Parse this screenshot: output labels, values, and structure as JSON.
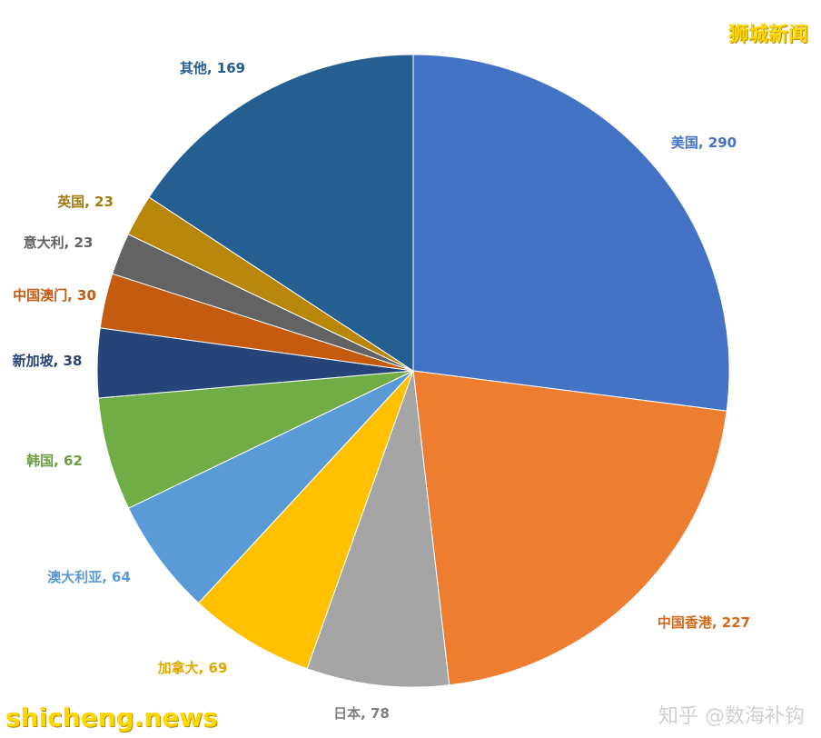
{
  "chart_data": {
    "type": "pie",
    "title": "",
    "start_angle_deg": 0,
    "direction": "clockwise",
    "slices": [
      {
        "label": "美国",
        "value": 290,
        "display": "美国, 290",
        "color": "#4472c4",
        "label_color": "#4472c4"
      },
      {
        "label": "中国香港",
        "value": 227,
        "display": "中国香港, 227",
        "color": "#ed7d31",
        "label_color": "#d4691c"
      },
      {
        "label": "日本",
        "value": 78,
        "display": "日本, 78",
        "color": "#a5a5a5",
        "label_color": "#7f7f7f"
      },
      {
        "label": "加拿大",
        "value": 69,
        "display": "加拿大, 69",
        "color": "#ffc000",
        "label_color": "#e0a800"
      },
      {
        "label": "澳大利亚",
        "value": 64,
        "display": "澳大利亚, 64",
        "color": "#5b9bd5",
        "label_color": "#5b9bd5"
      },
      {
        "label": "韩国",
        "value": 62,
        "display": "韩国, 62",
        "color": "#70ad47",
        "label_color": "#6a9e3f"
      },
      {
        "label": "新加坡",
        "value": 38,
        "display": "新加坡, 38",
        "color": "#264478",
        "label_color": "#264478"
      },
      {
        "label": "中国澳门",
        "value": 30,
        "display": "中国澳门, 30",
        "color": "#c55a11",
        "label_color": "#c55a11"
      },
      {
        "label": "意大利",
        "value": 23,
        "display": "意大利, 23",
        "color": "#636363",
        "label_color": "#636363"
      },
      {
        "label": "英国",
        "value": 23,
        "display": "英国, 23",
        "color": "#b8860b",
        "label_color": "#a07a10"
      },
      {
        "label": "其他",
        "value": 169,
        "display": "其他, 169",
        "color": "#255e91",
        "label_color": "#255e91"
      }
    ]
  },
  "watermarks": {
    "top_right": "狮城新闻",
    "bottom_left": "shicheng.news",
    "bottom_right": "知乎 @数海补钩"
  }
}
